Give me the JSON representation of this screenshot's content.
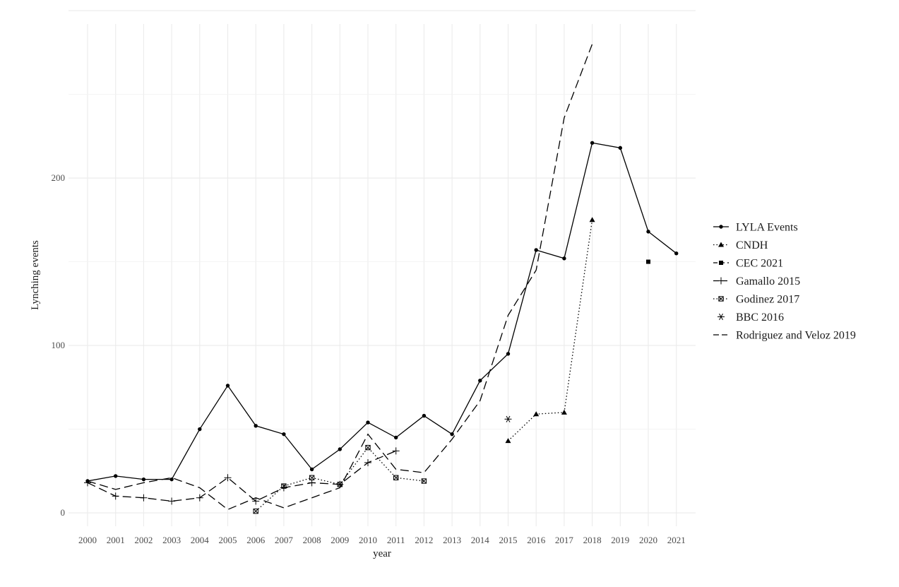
{
  "chart_data": {
    "type": "line",
    "xlabel": "year",
    "ylabel": "Lynching events",
    "x": [
      "2000",
      "2001",
      "2002",
      "2003",
      "2004",
      "2005",
      "2006",
      "2007",
      "2008",
      "2009",
      "2010",
      "2011",
      "2012",
      "2013",
      "2014",
      "2015",
      "2016",
      "2017",
      "2018",
      "2019",
      "2020",
      "2021"
    ],
    "yticks": [
      0,
      100,
      200
    ],
    "ylim": [
      -8,
      292
    ],
    "grid": true,
    "legend_position": "right",
    "series": [
      {
        "name": "LYLA Events",
        "linetype": "solid",
        "marker": "circle",
        "values": [
          19,
          22,
          20,
          20,
          50,
          76,
          52,
          47,
          26,
          38,
          54,
          45,
          58,
          47,
          79,
          95,
          157,
          152,
          221,
          218,
          168,
          155
        ]
      },
      {
        "name": "CNDH",
        "linetype": "dotted",
        "marker": "triangle",
        "values": [
          null,
          null,
          null,
          null,
          null,
          null,
          null,
          null,
          null,
          null,
          null,
          null,
          null,
          null,
          null,
          43,
          59,
          60,
          175,
          null,
          null,
          null
        ]
      },
      {
        "name": "CEC 2021",
        "linetype": "dashed",
        "marker": "square",
        "values": [
          null,
          null,
          null,
          null,
          null,
          null,
          null,
          null,
          null,
          null,
          null,
          null,
          null,
          null,
          null,
          null,
          null,
          null,
          null,
          null,
          150,
          null
        ]
      },
      {
        "name": "Gamallo 2015",
        "linetype": "longdash",
        "marker": "plus",
        "values": [
          18,
          10,
          9,
          7,
          9,
          21,
          7,
          15,
          18,
          17,
          30,
          37,
          null,
          null,
          null,
          null,
          null,
          null,
          null,
          null,
          null,
          null
        ]
      },
      {
        "name": "Godinez 2017",
        "linetype": "dotted",
        "marker": "boxx",
        "values": [
          null,
          null,
          null,
          null,
          null,
          null,
          1,
          16,
          21,
          17,
          39,
          21,
          19,
          null,
          null,
          null,
          null,
          null,
          null,
          null,
          null,
          null
        ]
      },
      {
        "name": "BBC 2016",
        "linetype": "none",
        "marker": "asterisk",
        "values": [
          null,
          null,
          null,
          null,
          null,
          null,
          null,
          null,
          null,
          null,
          null,
          null,
          null,
          null,
          null,
          56,
          null,
          null,
          null,
          null,
          null,
          null
        ]
      },
      {
        "name": "Rodriguez and Veloz 2019",
        "linetype": "longdash",
        "marker": "none",
        "values": [
          19,
          14,
          18,
          21,
          15,
          2,
          9,
          3,
          9,
          15,
          47,
          26,
          24,
          44,
          67,
          118,
          145,
          236,
          280,
          null,
          null,
          null
        ]
      }
    ]
  }
}
